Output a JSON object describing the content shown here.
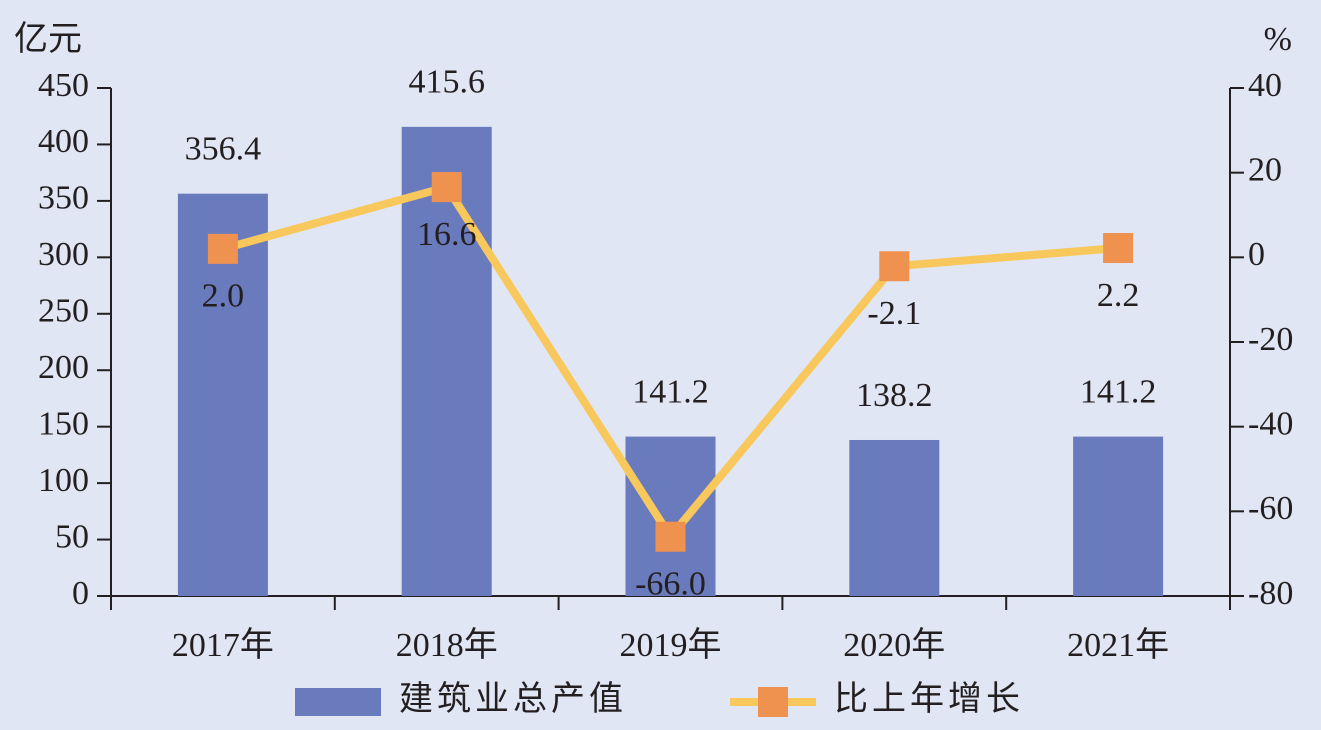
{
  "chart_data": {
    "type": "bar",
    "y_label": "亿元",
    "y2_label": "%",
    "categories": [
      "2017年",
      "2018年",
      "2019年",
      "2020年",
      "2021年"
    ],
    "series": [
      {
        "name": "建筑业总产值",
        "type": "bar",
        "color": "#6a7bbd",
        "values": [
          356.4,
          415.6,
          141.2,
          138.2,
          141.2
        ]
      },
      {
        "name": "比上年增长",
        "type": "line",
        "axis": "y2",
        "color": "#f9c85c",
        "marker_color": "#f0924f",
        "values": [
          2.0,
          16.6,
          -66.0,
          -2.1,
          2.2
        ],
        "value_labels": [
          "2.0",
          "16.6",
          "-66.0",
          "-2.1",
          "2.2"
        ]
      }
    ],
    "ylim": [
      0,
      450
    ],
    "yticks": [
      0,
      50,
      100,
      150,
      200,
      250,
      300,
      350,
      400,
      450
    ],
    "y2lim": [
      -80,
      40
    ],
    "y2ticks": [
      -80,
      -60,
      -40,
      -20,
      0,
      20,
      40
    ],
    "legend": "bottom"
  }
}
